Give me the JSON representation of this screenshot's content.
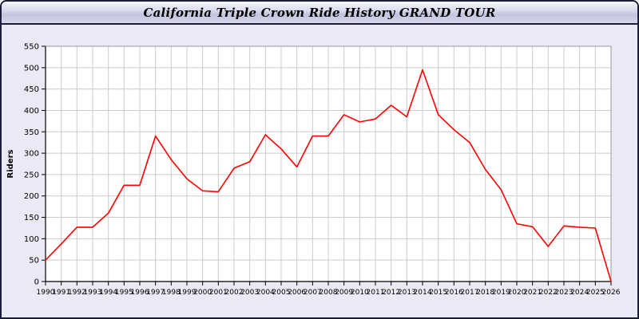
{
  "window": {
    "title": "California Triple Crown Ride History GRAND TOUR"
  },
  "chart_data": {
    "type": "line",
    "title": "California Triple Crown Ride History GRAND TOUR",
    "xlabel": "",
    "ylabel": "Riders",
    "ylim": [
      0,
      550
    ],
    "ytick_step": 50,
    "grid": true,
    "legend_position": "none",
    "line_color": "#ff0000",
    "grid_color": "#cccccc",
    "axis_color": "#000000",
    "plot_bg": "#ffffff",
    "x": [
      1990,
      1991,
      1992,
      1993,
      1994,
      1995,
      1996,
      1997,
      1998,
      1999,
      2000,
      2001,
      2002,
      2003,
      2004,
      2005,
      2006,
      2007,
      2008,
      2009,
      2010,
      2011,
      2012,
      2013,
      2014,
      2015,
      2016,
      2017,
      2018,
      2019,
      2020,
      2021,
      2022,
      2023,
      2024,
      2025,
      2026
    ],
    "series": [
      {
        "name": "Riders",
        "values": [
          50,
          88,
          127,
          127,
          160,
          225,
          225,
          340,
          285,
          240,
          212,
          210,
          265,
          280,
          343,
          310,
          268,
          340,
          340,
          390,
          373,
          380,
          412,
          385,
          495,
          390,
          355,
          325,
          262,
          215,
          135,
          128,
          82,
          130,
          127,
          125,
          0
        ]
      }
    ]
  }
}
